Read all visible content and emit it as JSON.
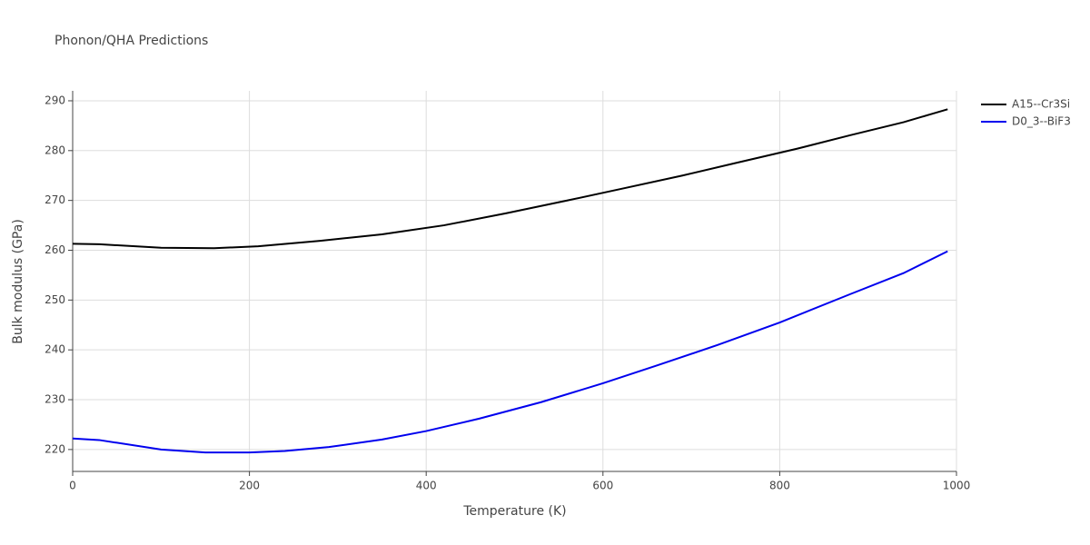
{
  "chart_data": {
    "type": "line",
    "title": "Phonon/QHA Predictions",
    "x_label": "Temperature (K)",
    "y_label": "Bulk modulus (GPa)",
    "xlim": [
      0,
      1000
    ],
    "xticks": [
      0,
      200,
      400,
      600,
      800,
      1000
    ],
    "ylim": [
      215.6,
      292
    ],
    "yticks": [
      220,
      230,
      240,
      250,
      260,
      270,
      280,
      290
    ],
    "grid": true,
    "legend": "right",
    "series": [
      {
        "name": "A15--Cr3Si",
        "color": "#000000",
        "x": [
          0,
          30,
          100,
          160,
          210,
          280,
          350,
          420,
          490,
          560,
          620,
          690,
          750,
          820,
          880,
          940,
          990
        ],
        "values": [
          261.3,
          261.2,
          260.5,
          260.4,
          260.8,
          261.9,
          263.2,
          265.0,
          267.4,
          270.0,
          272.3,
          275.0,
          277.5,
          280.4,
          283.1,
          285.7,
          288.3
        ]
      },
      {
        "name": "D0_3--BiF3",
        "color": "#0000ee",
        "x": [
          0,
          30,
          100,
          150,
          200,
          240,
          290,
          350,
          400,
          460,
          530,
          600,
          660,
          730,
          800,
          880,
          940,
          990
        ],
        "values": [
          222.2,
          221.9,
          220.0,
          219.4,
          219.4,
          219.7,
          220.5,
          222.0,
          223.7,
          226.2,
          229.5,
          233.3,
          236.8,
          241.0,
          245.5,
          251.2,
          255.4,
          259.8
        ]
      }
    ]
  }
}
